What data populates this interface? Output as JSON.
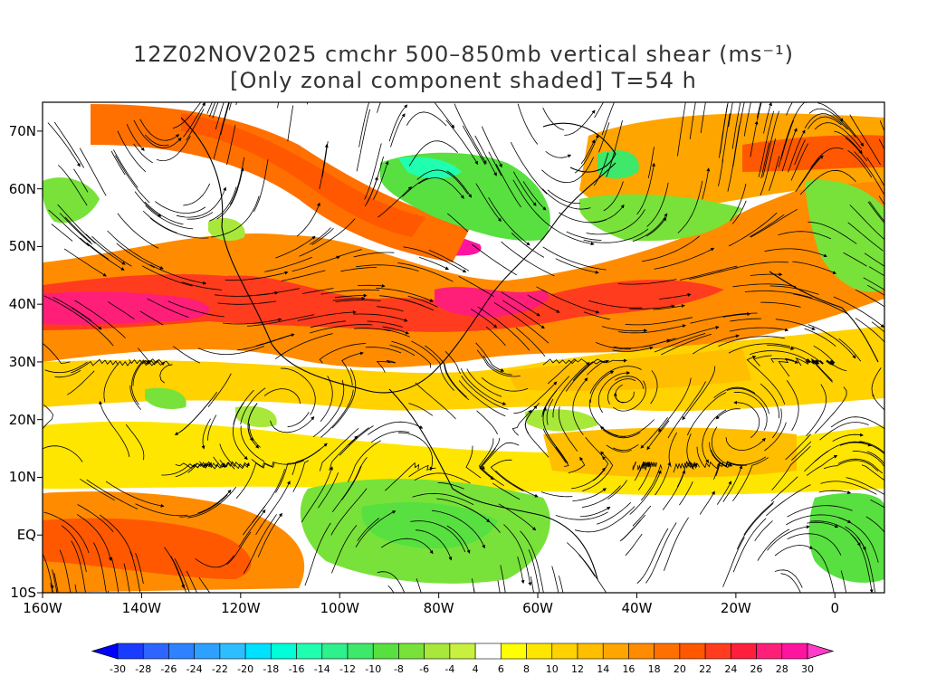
{
  "title": {
    "line1": "12Z02NOV2025 cmchr 500–850mb vertical shear (ms⁻¹)",
    "line2": "[Only zonal component shaded] T=54 h"
  },
  "map": {
    "lat_range": [
      -10,
      75
    ],
    "lon_range": [
      -160,
      10
    ],
    "lat_ticks": [
      {
        "value": 70,
        "label": "70N"
      },
      {
        "value": 60,
        "label": "60N"
      },
      {
        "value": 50,
        "label": "50N"
      },
      {
        "value": 40,
        "label": "40N"
      },
      {
        "value": 30,
        "label": "30N"
      },
      {
        "value": 20,
        "label": "20N"
      },
      {
        "value": 10,
        "label": "10N"
      },
      {
        "value": 0,
        "label": "EQ"
      },
      {
        "value": -10,
        "label": "10S"
      }
    ],
    "lon_ticks": [
      {
        "value": -160,
        "label": "160W"
      },
      {
        "value": -140,
        "label": "140W"
      },
      {
        "value": -120,
        "label": "120W"
      },
      {
        "value": -100,
        "label": "100W"
      },
      {
        "value": -80,
        "label": "80W"
      },
      {
        "value": -60,
        "label": "60W"
      },
      {
        "value": -40,
        "label": "40W"
      },
      {
        "value": -20,
        "label": "20W"
      },
      {
        "value": 0,
        "label": "0"
      }
    ],
    "overlay": "streamlines",
    "field": "zonal shear"
  },
  "colorbar": {
    "labels": [
      "-30",
      "-28",
      "-26",
      "-24",
      "-22",
      "-20",
      "-18",
      "-16",
      "-14",
      "-12",
      "-10",
      "-8",
      "-6",
      "-4",
      "4",
      "6",
      "8",
      "10",
      "12",
      "14",
      "16",
      "18",
      "20",
      "22",
      "24",
      "26",
      "28",
      "30"
    ],
    "colors": [
      "#0000ff",
      "#1a3cff",
      "#2e64ff",
      "#2e82ff",
      "#2ea0ff",
      "#2ebeff",
      "#00e0ff",
      "#00ffd8",
      "#20ffb0",
      "#2ef08c",
      "#3ee86a",
      "#58e040",
      "#78e23a",
      "#a8e83a",
      "#c8f040",
      "#ffffff",
      "#ffff00",
      "#ffe600",
      "#ffd200",
      "#ffbe00",
      "#ffa500",
      "#ff8c00",
      "#ff7000",
      "#ff5800",
      "#ff3c1e",
      "#ff1e3c",
      "#ff1e78",
      "#ff14a0",
      "#ff3cc8"
    ]
  }
}
